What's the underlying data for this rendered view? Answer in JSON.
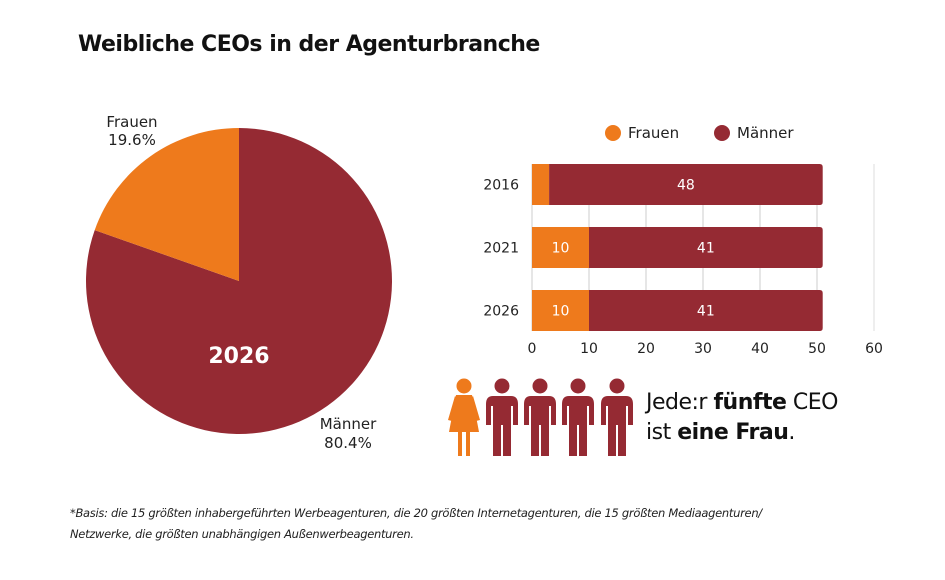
{
  "title": "Weibliche CEOs in der Agenturbranche",
  "colors": {
    "frauen": "#EE7A1C",
    "maenner": "#952A33",
    "grid": "#cccccc"
  },
  "chart_data": [
    {
      "type": "pie",
      "title": "2026",
      "center_label": "2026",
      "slices": [
        {
          "name": "Männer",
          "value": 80.4,
          "label": "Männer",
          "value_label": "80.4%"
        },
        {
          "name": "Frauen",
          "value": 19.6,
          "label": "Frauen",
          "value_label": "19.6%"
        }
      ]
    },
    {
      "type": "bar",
      "orientation": "horizontal",
      "stacked": true,
      "categories": [
        "2016",
        "2021",
        "2026"
      ],
      "series": [
        {
          "name": "Frauen",
          "values": [
            3,
            10,
            10
          ],
          "labels": [
            "",
            "10",
            "10"
          ]
        },
        {
          "name": "Männer",
          "values": [
            48,
            41,
            41
          ],
          "labels": [
            "48",
            "41",
            "41"
          ]
        }
      ],
      "xlim": [
        0,
        60
      ],
      "xticks": [
        "0",
        "10",
        "20",
        "30",
        "40",
        "50",
        "60"
      ],
      "grid": true,
      "legend": {
        "position": "top",
        "entries": [
          "Frauen",
          "Männer"
        ]
      }
    }
  ],
  "infographic": {
    "figures": [
      {
        "type": "woman-icon",
        "group": "Frauen"
      },
      {
        "type": "man-icon",
        "group": "Männer"
      },
      {
        "type": "man-icon",
        "group": "Männer"
      },
      {
        "type": "man-icon",
        "group": "Männer"
      },
      {
        "type": "man-icon",
        "group": "Männer"
      }
    ],
    "line1_pre": "Jede:r ",
    "line1_bold": "fünfte",
    "line1_post": " CEO",
    "line2_pre": "ist ",
    "line2_bold": "eine Frau",
    "line2_post": "."
  },
  "footnote": {
    "line1": "*Basis: die 15 größten inhabergeführten Werbeagenturen, die 20 größten Internetagenturen, die 15 größten  Mediaagenturen/",
    "line2": "Netzwerke, die größten unabhängigen Außenwerbeagenturen."
  }
}
